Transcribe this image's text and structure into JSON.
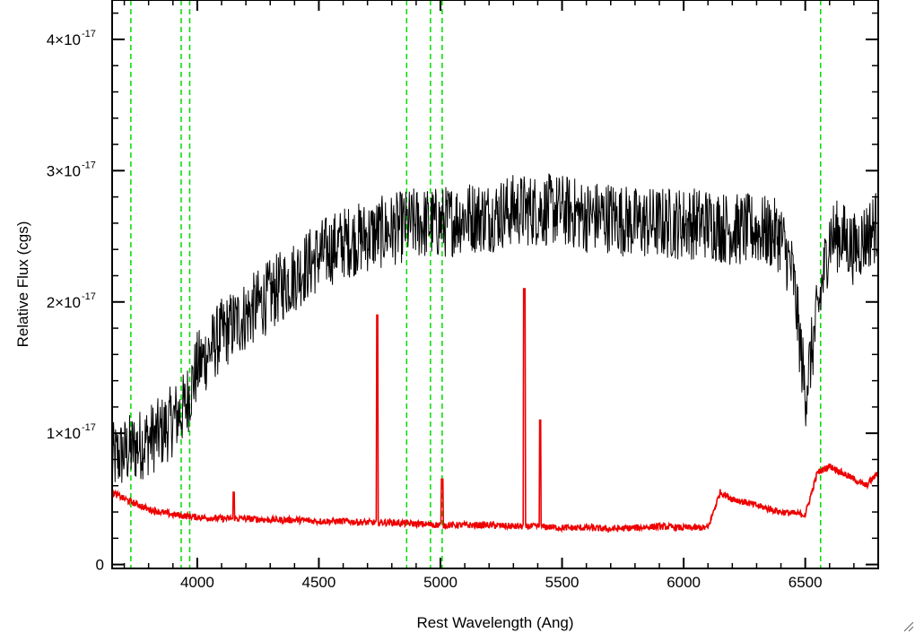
{
  "chart_data": {
    "type": "line",
    "title": "",
    "xlabel": "Rest Wavelength (Ang)",
    "ylabel": "Relative Flux (cgs)",
    "xlim": [
      3650,
      6800
    ],
    "ylim": [
      -3e-19,
      4.3e-17
    ],
    "x_ticks": [
      {
        "value": 4000,
        "label": "4000"
      },
      {
        "value": 4500,
        "label": "4500"
      },
      {
        "value": 5000,
        "label": "5000"
      },
      {
        "value": 5500,
        "label": "5500"
      },
      {
        "value": 6000,
        "label": "6000"
      },
      {
        "value": 6500,
        "label": "6500"
      }
    ],
    "y_ticks": [
      {
        "value": 0,
        "label": "0",
        "exp": ""
      },
      {
        "value": 1e-17,
        "label": "1×10",
        "exp": "-17"
      },
      {
        "value": 2e-17,
        "label": "2×10",
        "exp": "-17"
      },
      {
        "value": 3e-17,
        "label": "3×10",
        "exp": "-17"
      },
      {
        "value": 4e-17,
        "label": "4×10",
        "exp": "-17"
      }
    ],
    "grid": false,
    "reference_lines": {
      "color": "#00dd00",
      "style": "dashed",
      "x": [
        3727,
        3934,
        3969,
        4861,
        4959,
        5007,
        6563
      ]
    },
    "series": [
      {
        "color": "#000000",
        "x": [
          3650,
          3700,
          3750,
          3800,
          3850,
          3900,
          3950,
          4000,
          4100,
          4200,
          4300,
          4400,
          4500,
          4600,
          4700,
          4800,
          4900,
          5000,
          5100,
          5200,
          5300,
          5400,
          5500,
          5600,
          5700,
          5800,
          5900,
          6000,
          6100,
          6200,
          6300,
          6400,
          6450,
          6500,
          6550,
          6600,
          6650,
          6700,
          6750,
          6800
        ],
        "values": [
          8e-18,
          8.5e-18,
          9e-18,
          9.5e-18,
          1e-17,
          1.1e-17,
          1.2e-17,
          1.5e-17,
          1.75e-17,
          1.9e-17,
          2.05e-17,
          2.2e-17,
          2.35e-17,
          2.45e-17,
          2.5e-17,
          2.55e-17,
          2.6e-17,
          2.6e-17,
          2.65e-17,
          2.65e-17,
          2.7e-17,
          2.7e-17,
          2.7e-17,
          2.65e-17,
          2.65e-17,
          2.6e-17,
          2.6e-17,
          2.6e-17,
          2.6e-17,
          2.55e-17,
          2.55e-17,
          2.5e-17,
          2.2e-17,
          1.3e-17,
          1.9e-17,
          2.5e-17,
          2.5e-17,
          2.4e-17,
          2.5e-17,
          2.6e-17
        ]
      },
      {
        "color": "#ee0000",
        "x": [
          3650,
          3700,
          3800,
          3900,
          4000,
          4100,
          4200,
          4300,
          4400,
          4500,
          4600,
          4700,
          4800,
          4900,
          5000,
          5100,
          5200,
          5300,
          5400,
          5500,
          5600,
          5700,
          5800,
          5900,
          6000,
          6100,
          6150,
          6200,
          6300,
          6400,
          6500,
          6550,
          6600,
          6650,
          6700,
          6750,
          6800
        ],
        "values": [
          5.5e-18,
          5e-18,
          4.2e-18,
          3.8e-18,
          3.6e-18,
          3.5e-18,
          3.5e-18,
          3.4e-18,
          3.4e-18,
          3.3e-18,
          3.3e-18,
          3.2e-18,
          3.2e-18,
          3.1e-18,
          3e-18,
          3e-18,
          3e-18,
          2.9e-18,
          2.9e-18,
          2.8e-18,
          2.8e-18,
          2.7e-18,
          2.8e-18,
          2.9e-18,
          2.8e-18,
          2.8e-18,
          5.5e-18,
          5e-18,
          4.5e-18,
          4e-18,
          3.8e-18,
          7e-18,
          7.5e-18,
          7e-18,
          6.5e-18,
          6e-18,
          7e-18
        ],
        "spikes": [
          {
            "x": 4150,
            "y": 5.5e-18
          },
          {
            "x": 4740,
            "y": 1.9e-17
          },
          {
            "x": 5007,
            "y": 6.5e-18
          },
          {
            "x": 5345,
            "y": 2.1e-17
          },
          {
            "x": 5410,
            "y": 1.1e-17
          }
        ]
      }
    ]
  }
}
